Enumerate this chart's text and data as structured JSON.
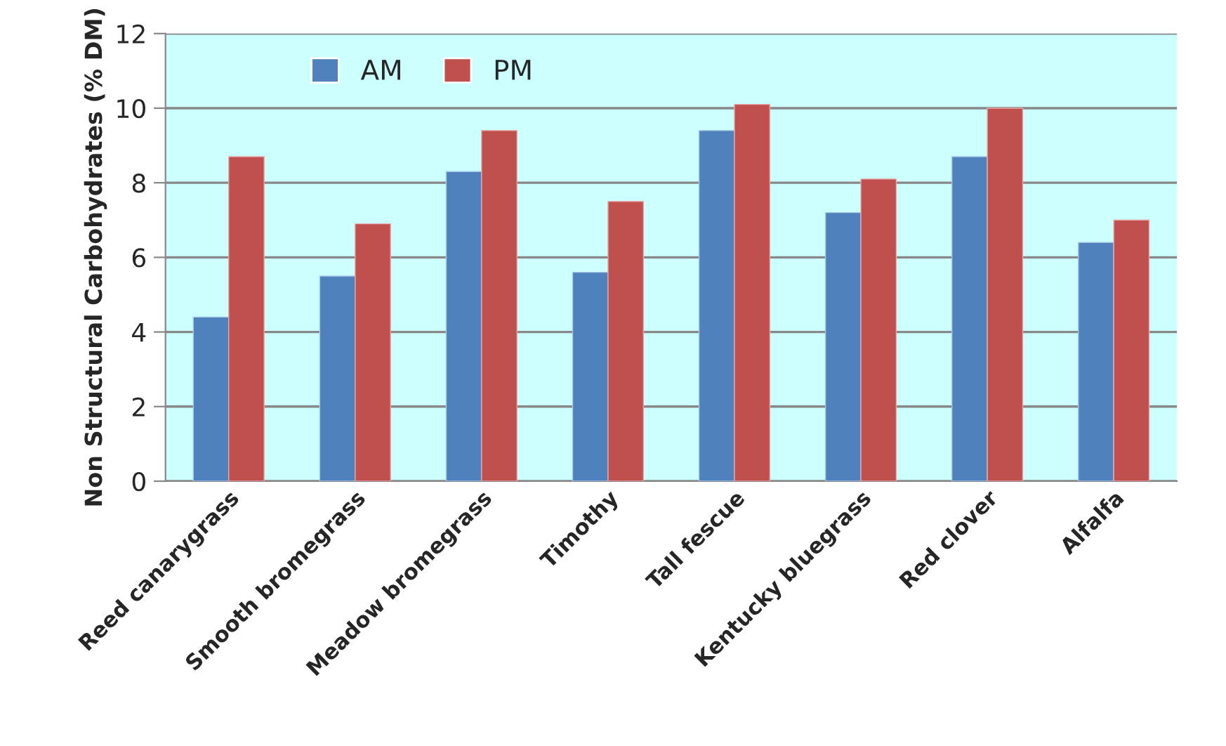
{
  "chart_data": {
    "type": "bar",
    "ylabel": "Non Structural Carbohydrates (% DM)",
    "categories": [
      "Reed canarygrass",
      "Smooth bromegrass",
      "Meadow bromegrass",
      "Timothy",
      "Tall fescue",
      "Kentucky bluegrass",
      "Red clover",
      "Alfalfa"
    ],
    "series": [
      {
        "name": "AM",
        "color": "#4f81bd",
        "values": [
          4.4,
          5.5,
          8.3,
          5.6,
          9.4,
          7.2,
          8.7,
          6.4
        ]
      },
      {
        "name": "PM",
        "color": "#c0504d",
        "values": [
          8.7,
          6.9,
          9.4,
          7.5,
          10.1,
          8.1,
          10.0,
          7.0
        ]
      }
    ],
    "ylim": [
      0,
      12
    ],
    "yticks": [
      0,
      2,
      4,
      6,
      8,
      10,
      12
    ],
    "grid": "y",
    "legend": "top left"
  }
}
